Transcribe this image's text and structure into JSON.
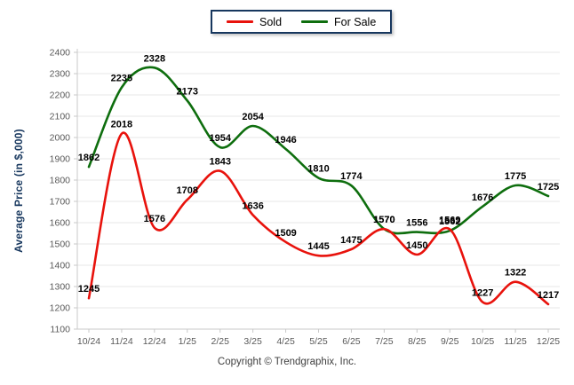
{
  "legend": {
    "items": [
      {
        "label": "Sold",
        "color": "#e8120c"
      },
      {
        "label": "For Sale",
        "color": "#0e6e0e"
      }
    ]
  },
  "chart_data": {
    "type": "line",
    "smooth": true,
    "grid": true,
    "legend_position": "top-center",
    "title": "",
    "xlabel": "",
    "ylabel": "Average Price (in $,000)",
    "ylim": [
      1100,
      2400
    ],
    "ytick_step": 100,
    "categories": [
      "10/24",
      "11/24",
      "12/24",
      "1/25",
      "2/25",
      "3/25",
      "4/25",
      "5/25",
      "6/25",
      "7/25",
      "8/25",
      "9/25",
      "10/25",
      "11/25",
      "12/25"
    ],
    "series": [
      {
        "name": "Sold",
        "color": "#e8120c",
        "values": [
          1245,
          2018,
          1576,
          1708,
          1843,
          1636,
          1509,
          1445,
          1475,
          1570,
          1450,
          1569,
          1227,
          1322,
          1217
        ]
      },
      {
        "name": "For Sale",
        "color": "#0e6e0e",
        "values": [
          1862,
          2235,
          2328,
          2173,
          1954,
          2054,
          1946,
          1810,
          1774,
          1570,
          1556,
          1562,
          1676,
          1775,
          1725
        ]
      }
    ]
  },
  "footer": {
    "copyright": "Copyright © Trendgraphix, Inc."
  },
  "colors": {
    "legend_border": "#17375e",
    "axis_title": "#17375e",
    "tick_label": "#595959",
    "data_label": "#000000",
    "gridline": "#e7e7e7",
    "axis_line": "#c9c9c9",
    "background": "#ffffff"
  }
}
